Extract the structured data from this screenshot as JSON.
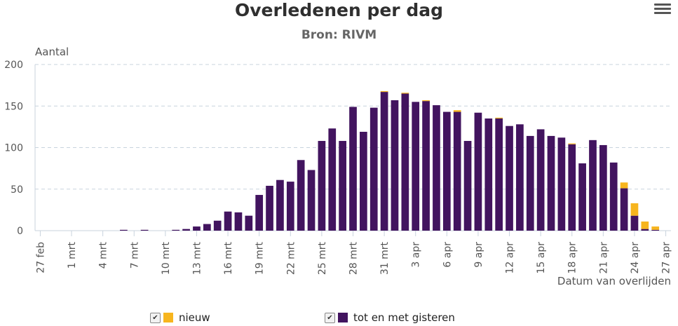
{
  "header": {
    "title": "Overledenen per dag",
    "subtitle": "Bron: RIVM"
  },
  "menu": {
    "icon": "hamburger-menu-icon"
  },
  "colors": {
    "nieuw": "#f7b51e",
    "gisteren": "#42145f",
    "grid": "#c8d3dd"
  },
  "chart_data": {
    "type": "bar",
    "stacked": true,
    "title": "Overledenen per dag",
    "subtitle": "Bron: RIVM",
    "xlabel": "Datum van overlijden",
    "ylabel": "Aantal",
    "ylim": [
      0,
      200
    ],
    "yticks": [
      0,
      50,
      100,
      150,
      200
    ],
    "grid": true,
    "legend_position": "bottom",
    "categories": [
      "27 feb",
      "28 feb",
      "29 feb",
      "1 mrt",
      "2 mrt",
      "3 mrt",
      "4 mrt",
      "5 mrt",
      "6 mrt",
      "7 mrt",
      "8 mrt",
      "9 mrt",
      "10 mrt",
      "11 mrt",
      "12 mrt",
      "13 mrt",
      "14 mrt",
      "15 mrt",
      "16 mrt",
      "17 mrt",
      "18 mrt",
      "19 mrt",
      "20 mrt",
      "21 mrt",
      "22 mrt",
      "23 mrt",
      "24 mrt",
      "25 mrt",
      "26 mrt",
      "27 mrt",
      "28 mrt",
      "29 mrt",
      "30 mrt",
      "31 mrt",
      "1 apr",
      "2 apr",
      "3 apr",
      "4 apr",
      "5 apr",
      "6 apr",
      "7 apr",
      "8 apr",
      "9 apr",
      "10 apr",
      "11 apr",
      "12 apr",
      "13 apr",
      "14 apr",
      "15 apr",
      "16 apr",
      "17 apr",
      "18 apr",
      "19 apr",
      "20 apr",
      "21 apr",
      "22 apr",
      "23 apr",
      "24 apr",
      "25 apr",
      "26 apr",
      "27 apr"
    ],
    "tick_labels": [
      "27 feb",
      "1 mrt",
      "4 mrt",
      "7 mrt",
      "10 mrt",
      "13 mrt",
      "16 mrt",
      "19 mrt",
      "22 mrt",
      "25 mrt",
      "28 mrt",
      "31 mrt",
      "3 apr",
      "6 apr",
      "9 apr",
      "12 apr",
      "15 apr",
      "18 apr",
      "21 apr",
      "24 apr",
      "27 apr"
    ],
    "series": [
      {
        "name": "tot en met gisteren",
        "color": "#42145f",
        "values": [
          0,
          0,
          0,
          0,
          0,
          0,
          0,
          0,
          1,
          0,
          1,
          0,
          0,
          1,
          2,
          5,
          8,
          12,
          23,
          22,
          18,
          43,
          54,
          61,
          59,
          85,
          73,
          108,
          123,
          108,
          149,
          119,
          148,
          167,
          157,
          165,
          155,
          156,
          151,
          143,
          143,
          108,
          142,
          135,
          135,
          126,
          128,
          114,
          122,
          114,
          112,
          104,
          81,
          109,
          103,
          82,
          51,
          18,
          2,
          1,
          0
        ]
      },
      {
        "name": "nieuw",
        "color": "#f7b51e",
        "values": [
          0,
          0,
          0,
          0,
          0,
          0,
          0,
          0,
          0,
          0,
          0,
          0,
          0,
          0,
          0,
          0,
          0,
          0,
          0,
          0,
          0,
          0,
          0,
          0,
          0,
          0,
          0,
          0,
          0,
          0,
          0,
          0,
          0,
          1,
          0,
          1,
          0,
          1,
          0,
          0,
          2,
          0,
          0,
          0,
          1,
          0,
          0,
          0,
          0,
          0,
          0,
          1,
          0,
          0,
          0,
          0,
          7,
          15,
          9,
          4,
          0
        ]
      }
    ]
  },
  "legend": {
    "items": [
      {
        "label": "nieuw",
        "color": "#f7b51e",
        "checked": "✔"
      },
      {
        "label": "tot en met gisteren",
        "color": "#42145f",
        "checked": "✔"
      }
    ]
  }
}
